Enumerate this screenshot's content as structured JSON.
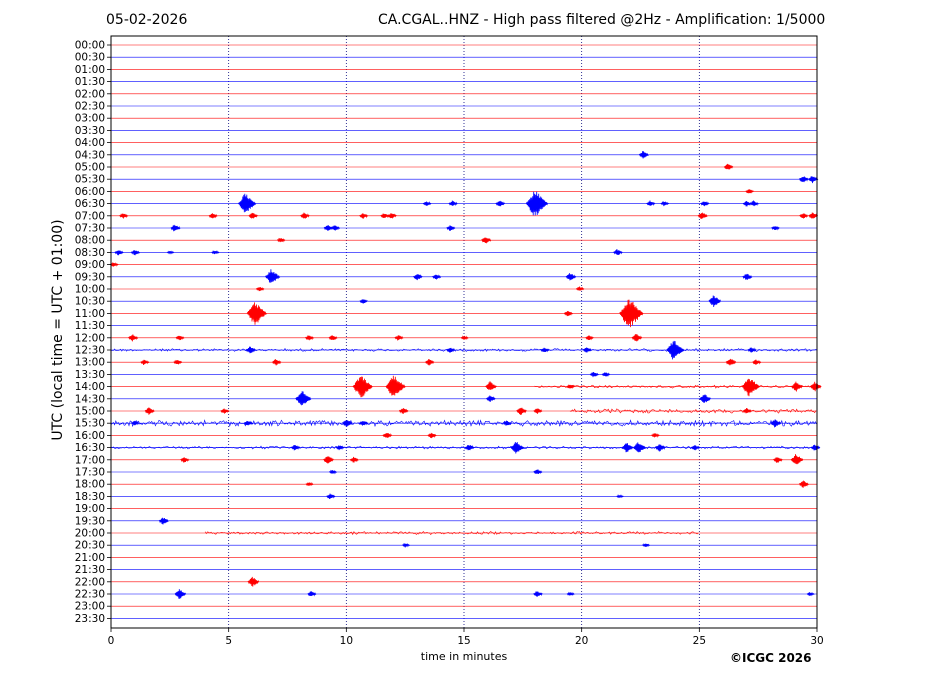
{
  "header": {
    "date": "05-02-2026",
    "title": "CA.CGAL..HNZ - High pass filtered @2Hz - Amplification: 1/5000"
  },
  "footer": {
    "copyright": "©ICGC 2026"
  },
  "chart_data": {
    "type": "line",
    "xlabel": "time in minutes",
    "ylabel": "UTC (local time = UTC + 01:00)",
    "xlim": [
      0,
      30
    ],
    "x_ticks": [
      "0",
      "5",
      "10",
      "15",
      "20",
      "25",
      "30"
    ],
    "x_tick_values": [
      0,
      5,
      10,
      15,
      20,
      25,
      30
    ],
    "grid_vertical": true,
    "row_labels": [
      "00:00",
      "00:30",
      "01:00",
      "01:30",
      "02:00",
      "02:30",
      "03:00",
      "03:30",
      "04:00",
      "04:30",
      "05:00",
      "05:30",
      "06:00",
      "06:30",
      "07:00",
      "07:30",
      "08:00",
      "08:30",
      "09:00",
      "09:30",
      "10:00",
      "10:30",
      "11:00",
      "11:30",
      "12:00",
      "12:30",
      "13:00",
      "13:30",
      "14:00",
      "14:30",
      "15:00",
      "15:30",
      "16:00",
      "16:30",
      "17:00",
      "17:30",
      "18:00",
      "18:30",
      "19:00",
      "19:30",
      "20:00",
      "20:30",
      "21:00",
      "21:30",
      "22:00",
      "22:30",
      "23:00",
      "23:30"
    ],
    "colors": {
      "even_rows": "#ff0000",
      "odd_rows": "#0000ff"
    },
    "events": [
      {
        "row": 9,
        "t": 22.6,
        "amp": 0.45
      },
      {
        "row": 10,
        "t": 26.2,
        "amp": 0.4
      },
      {
        "row": 11,
        "t": 29.4,
        "amp": 0.45
      },
      {
        "row": 11,
        "t": 29.8,
        "amp": 0.45
      },
      {
        "row": 12,
        "t": 27.1,
        "amp": 0.3
      },
      {
        "row": 13,
        "t": 5.7,
        "amp": 1.2
      },
      {
        "row": 13,
        "t": 13.4,
        "amp": 0.3
      },
      {
        "row": 13,
        "t": 14.5,
        "amp": 0.35
      },
      {
        "row": 13,
        "t": 16.5,
        "amp": 0.4
      },
      {
        "row": 13,
        "t": 18.0,
        "amp": 1.6
      },
      {
        "row": 13,
        "t": 22.9,
        "amp": 0.35
      },
      {
        "row": 13,
        "t": 23.5,
        "amp": 0.3
      },
      {
        "row": 13,
        "t": 25.2,
        "amp": 0.35
      },
      {
        "row": 13,
        "t": 27.0,
        "amp": 0.35
      },
      {
        "row": 13,
        "t": 27.3,
        "amp": 0.35
      },
      {
        "row": 14,
        "t": 0.5,
        "amp": 0.35
      },
      {
        "row": 14,
        "t": 4.3,
        "amp": 0.35
      },
      {
        "row": 14,
        "t": 6.0,
        "amp": 0.4
      },
      {
        "row": 14,
        "t": 8.2,
        "amp": 0.4
      },
      {
        "row": 14,
        "t": 10.7,
        "amp": 0.35
      },
      {
        "row": 14,
        "t": 11.6,
        "amp": 0.35
      },
      {
        "row": 14,
        "t": 11.9,
        "amp": 0.4
      },
      {
        "row": 14,
        "t": 25.1,
        "amp": 0.45
      },
      {
        "row": 14,
        "t": 29.4,
        "amp": 0.35
      },
      {
        "row": 14,
        "t": 29.8,
        "amp": 0.4
      },
      {
        "row": 15,
        "t": 2.7,
        "amp": 0.45
      },
      {
        "row": 15,
        "t": 9.2,
        "amp": 0.4
      },
      {
        "row": 15,
        "t": 9.5,
        "amp": 0.35
      },
      {
        "row": 15,
        "t": 14.4,
        "amp": 0.35
      },
      {
        "row": 15,
        "t": 28.2,
        "amp": 0.3
      },
      {
        "row": 16,
        "t": 7.2,
        "amp": 0.3
      },
      {
        "row": 16,
        "t": 15.9,
        "amp": 0.45
      },
      {
        "row": 17,
        "t": 0.3,
        "amp": 0.35
      },
      {
        "row": 17,
        "t": 1.0,
        "amp": 0.35
      },
      {
        "row": 17,
        "t": 2.5,
        "amp": 0.2
      },
      {
        "row": 17,
        "t": 4.4,
        "amp": 0.25
      },
      {
        "row": 17,
        "t": 21.5,
        "amp": 0.4
      },
      {
        "row": 18,
        "t": 0.1,
        "amp": 0.3
      },
      {
        "row": 19,
        "t": 6.8,
        "amp": 0.9
      },
      {
        "row": 19,
        "t": 13.0,
        "amp": 0.4
      },
      {
        "row": 19,
        "t": 13.8,
        "amp": 0.35
      },
      {
        "row": 19,
        "t": 19.5,
        "amp": 0.5
      },
      {
        "row": 19,
        "t": 27.0,
        "amp": 0.45
      },
      {
        "row": 20,
        "t": 6.3,
        "amp": 0.3
      },
      {
        "row": 20,
        "t": 19.9,
        "amp": 0.3
      },
      {
        "row": 21,
        "t": 10.7,
        "amp": 0.3
      },
      {
        "row": 21,
        "t": 25.6,
        "amp": 0.7
      },
      {
        "row": 22,
        "t": 6.1,
        "amp": 1.4
      },
      {
        "row": 22,
        "t": 19.4,
        "amp": 0.35
      },
      {
        "row": 22,
        "t": 22.0,
        "amp": 1.8
      },
      {
        "row": 24,
        "t": 0.9,
        "amp": 0.45
      },
      {
        "row": 24,
        "t": 2.9,
        "amp": 0.35
      },
      {
        "row": 24,
        "t": 8.4,
        "amp": 0.35
      },
      {
        "row": 24,
        "t": 9.4,
        "amp": 0.35
      },
      {
        "row": 24,
        "t": 12.2,
        "amp": 0.35
      },
      {
        "row": 24,
        "t": 15.0,
        "amp": 0.25
      },
      {
        "row": 24,
        "t": 20.3,
        "amp": 0.3
      },
      {
        "row": 24,
        "t": 22.3,
        "amp": 0.5
      },
      {
        "row": 25,
        "t": 5.9,
        "amp": 0.45
      },
      {
        "row": 25,
        "t": 14.4,
        "amp": 0.35
      },
      {
        "row": 25,
        "t": 18.4,
        "amp": 0.35
      },
      {
        "row": 25,
        "t": 20.2,
        "amp": 0.35
      },
      {
        "row": 25,
        "t": 23.9,
        "amp": 1.2
      },
      {
        "row": 25,
        "t": 27.2,
        "amp": 0.35
      },
      {
        "row": 26,
        "t": 1.4,
        "amp": 0.35
      },
      {
        "row": 26,
        "t": 2.8,
        "amp": 0.35
      },
      {
        "row": 26,
        "t": 7.0,
        "amp": 0.4
      },
      {
        "row": 26,
        "t": 13.5,
        "amp": 0.4
      },
      {
        "row": 26,
        "t": 26.3,
        "amp": 0.5
      },
      {
        "row": 26,
        "t": 27.4,
        "amp": 0.35
      },
      {
        "row": 27,
        "t": 20.5,
        "amp": 0.35
      },
      {
        "row": 27,
        "t": 21.0,
        "amp": 0.3
      },
      {
        "row": 28,
        "t": 10.6,
        "amp": 1.4
      },
      {
        "row": 28,
        "t": 12.0,
        "amp": 1.4
      },
      {
        "row": 28,
        "t": 16.1,
        "amp": 0.6
      },
      {
        "row": 28,
        "t": 19.5,
        "amp": 0.3
      },
      {
        "row": 28,
        "t": 27.1,
        "amp": 1.2
      },
      {
        "row": 28,
        "t": 29.1,
        "amp": 0.6
      },
      {
        "row": 28,
        "t": 29.9,
        "amp": 0.6
      },
      {
        "row": 29,
        "t": 8.1,
        "amp": 1.0
      },
      {
        "row": 29,
        "t": 16.1,
        "amp": 0.4
      },
      {
        "row": 29,
        "t": 25.2,
        "amp": 0.6
      },
      {
        "row": 30,
        "t": 1.6,
        "amp": 0.45
      },
      {
        "row": 30,
        "t": 4.8,
        "amp": 0.35
      },
      {
        "row": 30,
        "t": 12.4,
        "amp": 0.4
      },
      {
        "row": 30,
        "t": 17.4,
        "amp": 0.5
      },
      {
        "row": 30,
        "t": 18.1,
        "amp": 0.35
      },
      {
        "row": 30,
        "t": 27.0,
        "amp": 0.35
      },
      {
        "row": 31,
        "t": 1.0,
        "amp": 0.3
      },
      {
        "row": 31,
        "t": 5.8,
        "amp": 0.35
      },
      {
        "row": 31,
        "t": 10.0,
        "amp": 0.5
      },
      {
        "row": 31,
        "t": 10.7,
        "amp": 0.35
      },
      {
        "row": 31,
        "t": 16.8,
        "amp": 0.35
      },
      {
        "row": 31,
        "t": 28.2,
        "amp": 0.5
      },
      {
        "row": 32,
        "t": 11.7,
        "amp": 0.4
      },
      {
        "row": 32,
        "t": 13.6,
        "amp": 0.35
      },
      {
        "row": 32,
        "t": 23.1,
        "amp": 0.3
      },
      {
        "row": 33,
        "t": 7.8,
        "amp": 0.35
      },
      {
        "row": 33,
        "t": 9.7,
        "amp": 0.3
      },
      {
        "row": 33,
        "t": 15.2,
        "amp": 0.4
      },
      {
        "row": 33,
        "t": 17.2,
        "amp": 0.75
      },
      {
        "row": 33,
        "t": 21.9,
        "amp": 0.6
      },
      {
        "row": 33,
        "t": 22.4,
        "amp": 0.7
      },
      {
        "row": 33,
        "t": 23.3,
        "amp": 0.5
      },
      {
        "row": 33,
        "t": 24.8,
        "amp": 0.35
      },
      {
        "row": 33,
        "t": 29.9,
        "amp": 0.4
      },
      {
        "row": 34,
        "t": 3.1,
        "amp": 0.35
      },
      {
        "row": 34,
        "t": 9.2,
        "amp": 0.5
      },
      {
        "row": 34,
        "t": 10.3,
        "amp": 0.35
      },
      {
        "row": 34,
        "t": 28.3,
        "amp": 0.4
      },
      {
        "row": 34,
        "t": 29.1,
        "amp": 0.7
      },
      {
        "row": 35,
        "t": 9.4,
        "amp": 0.25
      },
      {
        "row": 35,
        "t": 18.1,
        "amp": 0.35
      },
      {
        "row": 36,
        "t": 8.4,
        "amp": 0.25
      },
      {
        "row": 36,
        "t": 29.4,
        "amp": 0.45
      },
      {
        "row": 37,
        "t": 9.3,
        "amp": 0.35
      },
      {
        "row": 37,
        "t": 21.6,
        "amp": 0.2
      },
      {
        "row": 39,
        "t": 2.2,
        "amp": 0.45
      },
      {
        "row": 41,
        "t": 12.5,
        "amp": 0.25
      },
      {
        "row": 41,
        "t": 22.7,
        "amp": 0.25
      },
      {
        "row": 44,
        "t": 6.0,
        "amp": 0.6
      },
      {
        "row": 45,
        "t": 2.9,
        "amp": 0.6
      },
      {
        "row": 45,
        "t": 8.5,
        "amp": 0.35
      },
      {
        "row": 45,
        "t": 18.1,
        "amp": 0.4
      },
      {
        "row": 45,
        "t": 19.5,
        "amp": 0.25
      },
      {
        "row": 45,
        "t": 29.7,
        "amp": 0.25
      }
    ],
    "noise_bands": [
      {
        "row": 25,
        "from": 0,
        "to": 30,
        "level": 0.12
      },
      {
        "row": 30,
        "from": 19.5,
        "to": 30,
        "level": 0.18
      },
      {
        "row": 31,
        "from": 0,
        "to": 30,
        "level": 0.25
      },
      {
        "row": 33,
        "from": 0,
        "to": 30,
        "level": 0.12
      },
      {
        "row": 28,
        "from": 18,
        "to": 30,
        "level": 0.12
      },
      {
        "row": 40,
        "from": 4,
        "to": 25,
        "level": 0.12
      }
    ]
  }
}
